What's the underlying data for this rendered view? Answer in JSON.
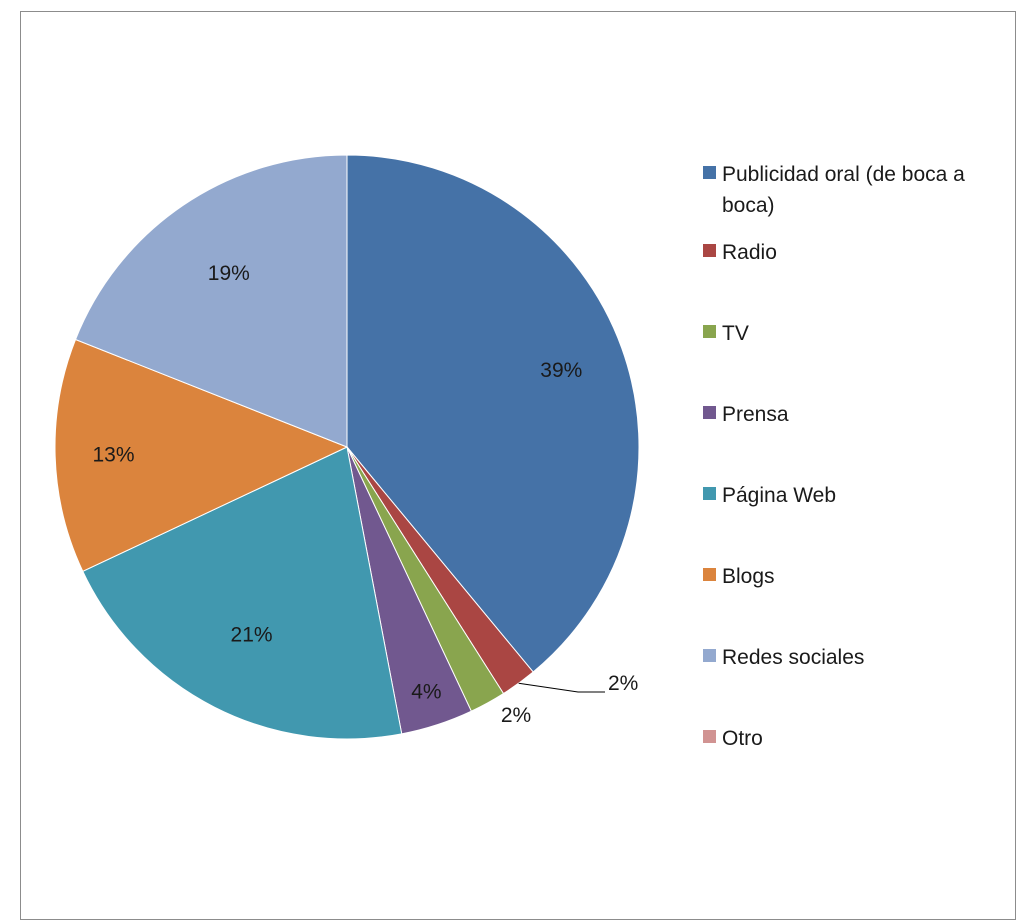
{
  "chart_data": {
    "type": "pie",
    "title": "",
    "categories": [
      "Publicidad oral (de boca a boca)",
      "Radio",
      " TV",
      "Prensa",
      "Página Web",
      "Blogs",
      "Redes sociales",
      "Otro"
    ],
    "values": [
      39,
      2,
      2,
      4,
      21,
      13,
      19,
      0
    ],
    "labels": [
      "39%",
      "2%",
      "2%",
      "4%",
      "21%",
      "13%",
      "19%",
      ""
    ],
    "colors": [
      "#4572A7",
      "#AA4643",
      "#89A54E",
      "#71588F",
      "#4198AF",
      "#DB843D",
      "#93A9CF",
      "#D19392"
    ],
    "legend_position": "right"
  }
}
